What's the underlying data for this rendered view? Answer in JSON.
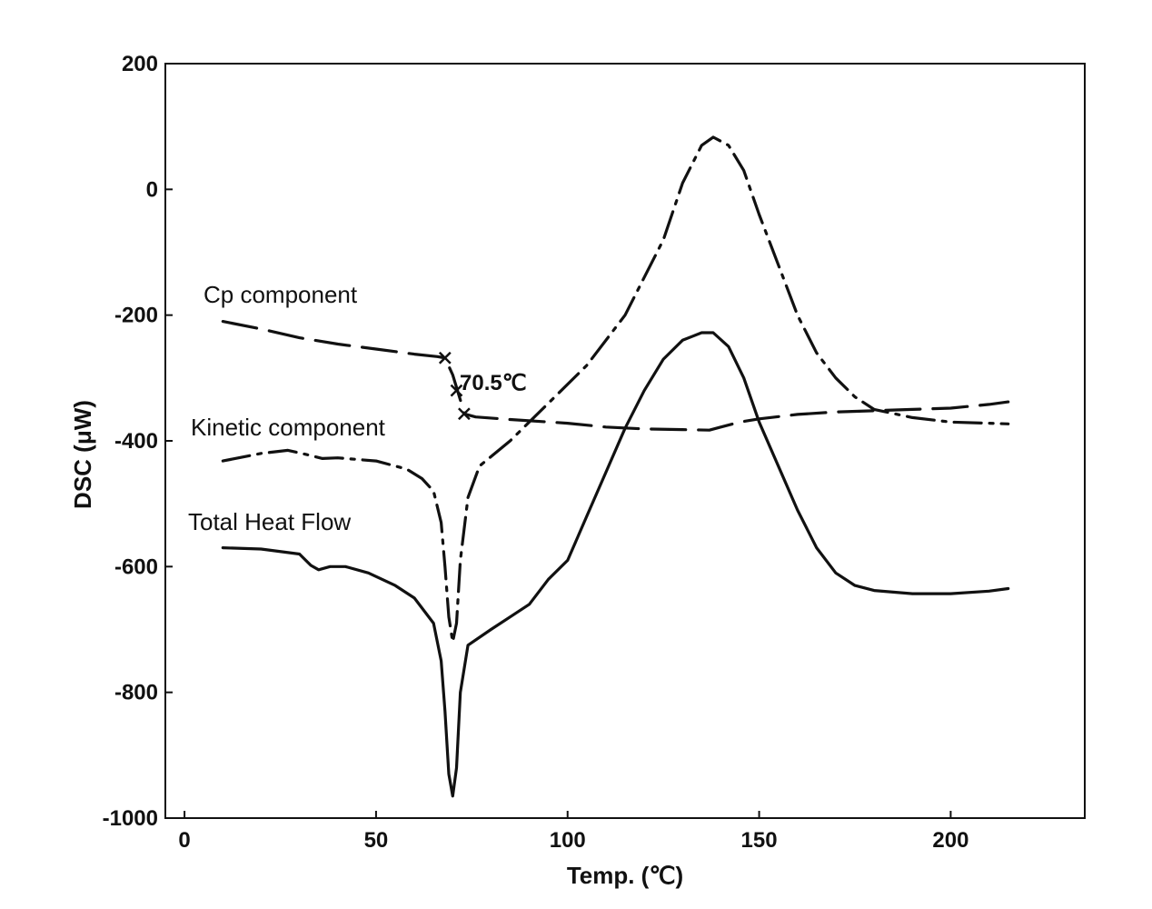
{
  "chart_data": {
    "type": "line",
    "xlabel": "Temp. (℃)",
    "ylabel": "DSC (μW)",
    "xlim": [
      -5,
      235
    ],
    "ylim": [
      -1000,
      200
    ],
    "xticks": [
      0,
      50,
      100,
      150,
      200
    ],
    "xtick_labels": [
      "0",
      "50",
      "100",
      "150",
      "200"
    ],
    "yticks": [
      200,
      0,
      -200,
      -400,
      -600,
      -800,
      -1000
    ],
    "ytick_labels": [
      "200",
      "0",
      "-200",
      "-400",
      "-600",
      "-800",
      "-1000"
    ],
    "grid": false,
    "legend": "none (series labeled inline)",
    "annotation": {
      "text": "70.5℃",
      "marker_points": [
        [
          68,
          -268
        ],
        [
          71,
          -320
        ],
        [
          73,
          -357
        ]
      ]
    },
    "series": [
      {
        "name": "Cp component",
        "style": "long-dash",
        "color": "#111111",
        "points": [
          [
            10,
            -210
          ],
          [
            20,
            -222
          ],
          [
            30,
            -236
          ],
          [
            40,
            -246
          ],
          [
            50,
            -254
          ],
          [
            60,
            -262
          ],
          [
            66,
            -266
          ],
          [
            68,
            -268
          ],
          [
            70,
            -295
          ],
          [
            72,
            -335
          ],
          [
            73,
            -357
          ],
          [
            76,
            -362
          ],
          [
            85,
            -366
          ],
          [
            100,
            -372
          ],
          [
            110,
            -378
          ],
          [
            120,
            -381
          ],
          [
            130,
            -382
          ],
          [
            137,
            -383
          ],
          [
            140,
            -378
          ],
          [
            145,
            -370
          ],
          [
            150,
            -365
          ],
          [
            160,
            -358
          ],
          [
            170,
            -354
          ],
          [
            180,
            -352
          ],
          [
            190,
            -350
          ],
          [
            200,
            -348
          ],
          [
            210,
            -342
          ],
          [
            215,
            -338
          ]
        ]
      },
      {
        "name": "Kinetic component",
        "style": "dash-dot",
        "color": "#111111",
        "points": [
          [
            10,
            -432
          ],
          [
            20,
            -420
          ],
          [
            27,
            -415
          ],
          [
            32,
            -422
          ],
          [
            36,
            -428
          ],
          [
            40,
            -427
          ],
          [
            50,
            -432
          ],
          [
            55,
            -440
          ],
          [
            58,
            -445
          ],
          [
            62,
            -460
          ],
          [
            65,
            -480
          ],
          [
            67,
            -530
          ],
          [
            68,
            -600
          ],
          [
            69,
            -680
          ],
          [
            70,
            -720
          ],
          [
            71,
            -690
          ],
          [
            72,
            -590
          ],
          [
            74,
            -490
          ],
          [
            77,
            -440
          ],
          [
            85,
            -400
          ],
          [
            95,
            -340
          ],
          [
            105,
            -280
          ],
          [
            115,
            -200
          ],
          [
            125,
            -80
          ],
          [
            130,
            10
          ],
          [
            135,
            70
          ],
          [
            138,
            83
          ],
          [
            142,
            70
          ],
          [
            146,
            30
          ],
          [
            150,
            -40
          ],
          [
            155,
            -120
          ],
          [
            160,
            -200
          ],
          [
            165,
            -260
          ],
          [
            170,
            -300
          ],
          [
            175,
            -330
          ],
          [
            180,
            -350
          ],
          [
            190,
            -363
          ],
          [
            200,
            -370
          ],
          [
            210,
            -372
          ],
          [
            215,
            -373
          ]
        ]
      },
      {
        "name": "Total Heat Flow",
        "style": "solid",
        "color": "#111111",
        "points": [
          [
            10,
            -570
          ],
          [
            20,
            -572
          ],
          [
            30,
            -580
          ],
          [
            33,
            -598
          ],
          [
            35,
            -605
          ],
          [
            38,
            -600
          ],
          [
            42,
            -600
          ],
          [
            48,
            -610
          ],
          [
            55,
            -630
          ],
          [
            60,
            -650
          ],
          [
            65,
            -690
          ],
          [
            67,
            -750
          ],
          [
            68,
            -830
          ],
          [
            69,
            -930
          ],
          [
            70,
            -965
          ],
          [
            71,
            -920
          ],
          [
            72,
            -800
          ],
          [
            74,
            -725
          ],
          [
            80,
            -700
          ],
          [
            85,
            -680
          ],
          [
            90,
            -660
          ],
          [
            95,
            -620
          ],
          [
            100,
            -590
          ],
          [
            105,
            -520
          ],
          [
            110,
            -450
          ],
          [
            115,
            -380
          ],
          [
            120,
            -320
          ],
          [
            125,
            -270
          ],
          [
            130,
            -240
          ],
          [
            135,
            -228
          ],
          [
            138,
            -228
          ],
          [
            142,
            -250
          ],
          [
            146,
            -300
          ],
          [
            150,
            -370
          ],
          [
            155,
            -440
          ],
          [
            160,
            -510
          ],
          [
            165,
            -570
          ],
          [
            170,
            -610
          ],
          [
            175,
            -630
          ],
          [
            180,
            -638
          ],
          [
            190,
            -643
          ],
          [
            200,
            -643
          ],
          [
            210,
            -639
          ],
          [
            215,
            -635
          ]
        ]
      }
    ]
  }
}
